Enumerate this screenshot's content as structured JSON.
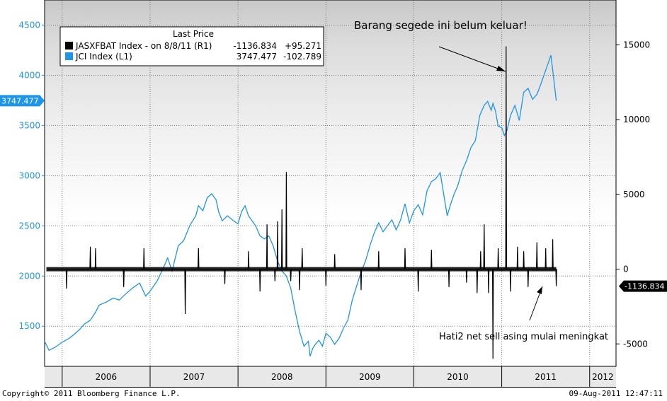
{
  "footer": {
    "copyright": "Copyright© 2011 Bloomberg Finance L.P.",
    "timestamp": "09-Aug-2011 12:47:11"
  },
  "chart_data": {
    "type": "line",
    "title": "",
    "legend": {
      "placement": "top-left",
      "header": "Last Price",
      "rows": [
        {
          "label": "JASXFBAT Index -   on 8/8/11  (R1)",
          "last": "-1136.834",
          "change": "+95.271",
          "color": "#000000"
        },
        {
          "label": "JCI Index  (L1)",
          "last": "3747.477",
          "change": "-102.789",
          "color": "#1f95e8"
        }
      ]
    },
    "left_axis": {
      "ticks": [
        1500,
        2000,
        2500,
        3000,
        3500,
        4000,
        4500
      ],
      "range": [
        1100,
        4750
      ],
      "last_value_label": "3747.477",
      "color": "#1f95e8"
    },
    "right_axis": {
      "ticks": [
        -5000,
        0,
        5000,
        10000,
        15000
      ],
      "tick_labels": [
        "-5000",
        "0",
        "5000",
        "10000",
        "15000"
      ],
      "range": [
        -6500,
        18000
      ],
      "last_value_label": "-1136.834"
    },
    "x_axis": {
      "categories": [
        "2006",
        "2007",
        "2008",
        "2009",
        "2010",
        "2011",
        "2012"
      ],
      "range": [
        2005.8,
        2012.3
      ],
      "grid": true
    },
    "series": [
      {
        "name": "JCI Index",
        "axis": "left",
        "color": "#1f95e8",
        "x": [
          2005.8,
          2005.85,
          2005.92,
          2006.0,
          2006.08,
          2006.15,
          2006.2,
          2006.25,
          2006.32,
          2006.38,
          2006.42,
          2006.5,
          2006.58,
          2006.65,
          2006.72,
          2006.8,
          2006.88,
          2006.95,
          2007.0,
          2007.08,
          2007.15,
          2007.2,
          2007.25,
          2007.32,
          2007.38,
          2007.45,
          2007.52,
          2007.55,
          2007.6,
          2007.65,
          2007.7,
          2007.75,
          2007.78,
          2007.82,
          2007.88,
          2007.95,
          2008.0,
          2008.04,
          2008.08,
          2008.12,
          2008.16,
          2008.2,
          2008.25,
          2008.3,
          2008.35,
          2008.4,
          2008.45,
          2008.5,
          2008.55,
          2008.6,
          2008.65,
          2008.7,
          2008.75,
          2008.8,
          2008.82,
          2008.85,
          2008.88,
          2008.92,
          2008.96,
          2009.0,
          2009.05,
          2009.1,
          2009.15,
          2009.2,
          2009.25,
          2009.3,
          2009.35,
          2009.4,
          2009.45,
          2009.5,
          2009.55,
          2009.6,
          2009.65,
          2009.7,
          2009.75,
          2009.8,
          2009.85,
          2009.9,
          2009.95,
          2010.0,
          2010.05,
          2010.1,
          2010.15,
          2010.2,
          2010.25,
          2010.3,
          2010.35,
          2010.38,
          2010.42,
          2010.46,
          2010.5,
          2010.55,
          2010.6,
          2010.65,
          2010.7,
          2010.75,
          2010.8,
          2010.84,
          2010.88,
          2010.9,
          2010.93,
          2010.96,
          2011.0,
          2011.03,
          2011.06,
          2011.1,
          2011.15,
          2011.2,
          2011.25,
          2011.3,
          2011.35,
          2011.4,
          2011.44,
          2011.48,
          2011.52,
          2011.56,
          2011.6,
          2011.62
        ],
        "values": [
          1350,
          1260,
          1290,
          1340,
          1380,
          1430,
          1470,
          1520,
          1560,
          1640,
          1710,
          1740,
          1780,
          1760,
          1820,
          1880,
          1930,
          1800,
          1850,
          1950,
          2080,
          2180,
          2050,
          2300,
          2350,
          2500,
          2600,
          2700,
          2650,
          2780,
          2820,
          2760,
          2640,
          2550,
          2600,
          2550,
          2520,
          2640,
          2700,
          2600,
          2550,
          2500,
          2400,
          2370,
          2400,
          2300,
          2150,
          2050,
          2000,
          1880,
          1650,
          1450,
          1300,
          1350,
          1200,
          1280,
          1320,
          1360,
          1300,
          1430,
          1390,
          1320,
          1380,
          1480,
          1560,
          1760,
          1900,
          2040,
          2150,
          2300,
          2430,
          2530,
          2440,
          2500,
          2560,
          2460,
          2560,
          2720,
          2530,
          2650,
          2710,
          2610,
          2850,
          2940,
          2970,
          3030,
          2760,
          2600,
          2720,
          2820,
          2900,
          3050,
          3150,
          3280,
          3350,
          3600,
          3700,
          3740,
          3650,
          3720,
          3640,
          3490,
          3480,
          3400,
          3450,
          3600,
          3700,
          3550,
          3830,
          3870,
          3760,
          3810,
          3900,
          4000,
          4100,
          4200,
          3900,
          3747
        ]
      },
      {
        "name": "JASXFBAT Index",
        "axis": "right",
        "color": "#000000",
        "x": [
          2006.05,
          2006.32,
          2006.38,
          2006.7,
          2006.93,
          2007.4,
          2007.55,
          2007.85,
          2008.12,
          2008.25,
          2008.33,
          2008.42,
          2008.45,
          2008.5,
          2008.55,
          2008.6,
          2008.7,
          2008.73,
          2009.0,
          2009.1,
          2009.4,
          2009.6,
          2009.9,
          2010.05,
          2010.2,
          2010.4,
          2010.6,
          2010.72,
          2010.76,
          2010.8,
          2010.85,
          2010.9,
          2010.96,
          2011.05,
          2011.1,
          2011.18,
          2011.25,
          2011.3,
          2011.4,
          2011.5,
          2011.58,
          2011.62
        ],
        "values": [
          -1300,
          1500,
          1400,
          -1200,
          1400,
          -3000,
          1400,
          -1000,
          1200,
          -1500,
          3000,
          -800,
          3200,
          4000,
          6500,
          -800,
          -1400,
          1400,
          -1100,
          1000,
          -1400,
          1200,
          1400,
          -1500,
          1300,
          -1200,
          -900,
          -1600,
          1200,
          3000,
          -1600,
          -6000,
          1400,
          14900,
          -1500,
          1500,
          1200,
          -1200,
          1800,
          1400,
          2000,
          -1136.834
        ]
      }
    ],
    "annotations": [
      {
        "text": "Barang segede ini belum keluar!",
        "x": 2009.95,
        "y": 16800,
        "axis": "right"
      },
      {
        "text": "Hati2  net sell asing mulai meningkat",
        "x": 2010.55,
        "y": -4300,
        "axis": "right"
      }
    ]
  }
}
